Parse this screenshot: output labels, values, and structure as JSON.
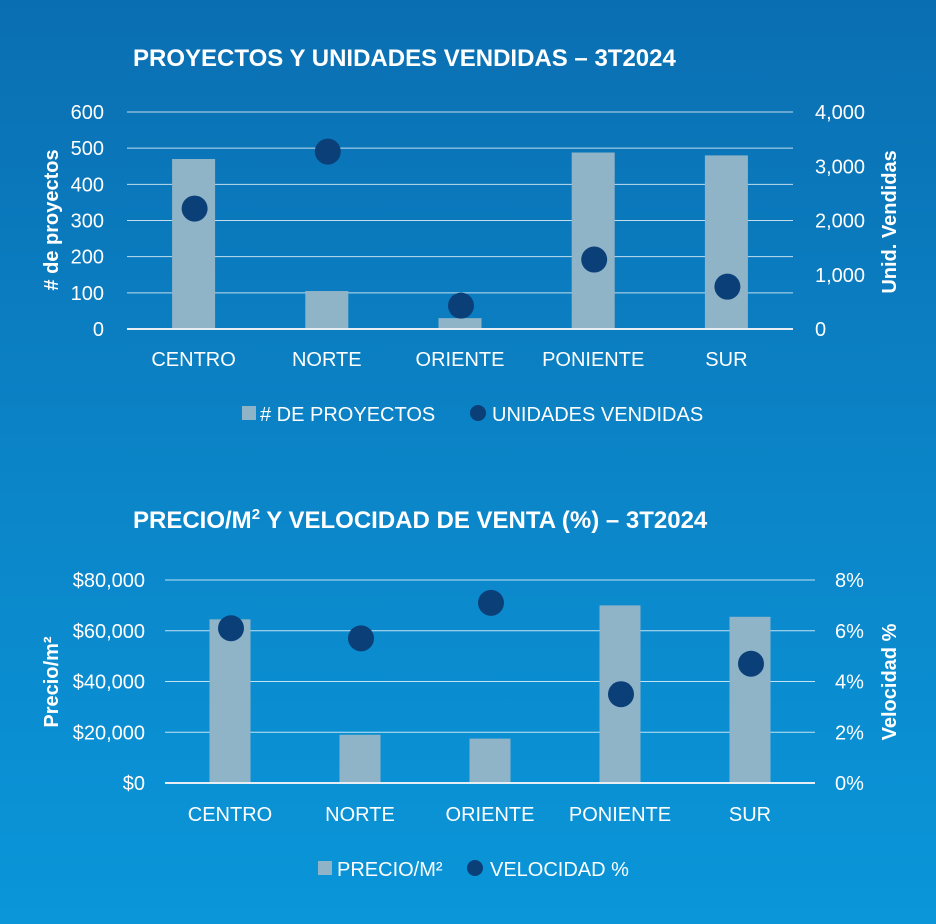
{
  "colors": {
    "bar": "#8fb4c8",
    "dot": "#0b3f78",
    "text": "#ffffff"
  },
  "chart_data": [
    {
      "type": "bar",
      "title": "PROYECTOS Y UNIDADES VENDIDAS – 3T2024",
      "categories": [
        "CENTRO",
        "NORTE",
        "ORIENTE",
        "PONIENTE",
        "SUR"
      ],
      "series": [
        {
          "name": "# DE PROYECTOS",
          "type": "bar",
          "axis": "left",
          "values": [
            470,
            105,
            30,
            488,
            480
          ]
        },
        {
          "name": "UNIDADES VENDIDAS",
          "type": "scatter",
          "axis": "right",
          "values": [
            2220,
            3270,
            430,
            1280,
            780
          ]
        }
      ],
      "ylabel": "# de proyectos",
      "y2label": "Unid. Vendidas",
      "ylim": [
        0,
        600
      ],
      "y2lim": [
        0,
        4000
      ],
      "yticks": [
        0,
        100,
        200,
        300,
        400,
        500,
        600
      ],
      "y2ticks": [
        0,
        1000,
        2000,
        3000,
        4000
      ],
      "ytick_labels": [
        "0",
        "100",
        "200",
        "300",
        "400",
        "500",
        "600"
      ],
      "y2tick_labels": [
        "0",
        "1,000",
        "2,000",
        "3,000",
        "4,000"
      ],
      "grid": true,
      "legend": "bottom"
    },
    {
      "type": "bar",
      "title": "PRECIO/M² Y VELOCIDAD DE VENTA (%) – 3T2024",
      "title_main": "PRECIO/M",
      "title_sup": "2",
      "title_rest": " Y VELOCIDAD DE VENTA (%) – 3T2024",
      "categories": [
        "CENTRO",
        "NORTE",
        "ORIENTE",
        "PONIENTE",
        "SUR"
      ],
      "series": [
        {
          "name": "PRECIO/M²",
          "type": "bar",
          "axis": "left",
          "values": [
            64500,
            19000,
            17500,
            70000,
            65500
          ]
        },
        {
          "name": "VELOCIDAD %",
          "type": "scatter",
          "axis": "right",
          "values": [
            6.1,
            5.7,
            7.1,
            3.5,
            4.7
          ]
        }
      ],
      "ylabel": "Precio/m²",
      "y2label": "Velocidad %",
      "ylim": [
        0,
        80000
      ],
      "y2lim": [
        0,
        8
      ],
      "yticks": [
        0,
        20000,
        40000,
        60000,
        80000
      ],
      "y2ticks": [
        0,
        2,
        4,
        6,
        8
      ],
      "ytick_labels": [
        "$0",
        "$20,000",
        "$40,000",
        "$60,000",
        "$80,000"
      ],
      "y2tick_labels": [
        "0%",
        "2%",
        "4%",
        "6%",
        "8%"
      ],
      "grid": true,
      "legend": "bottom"
    }
  ]
}
